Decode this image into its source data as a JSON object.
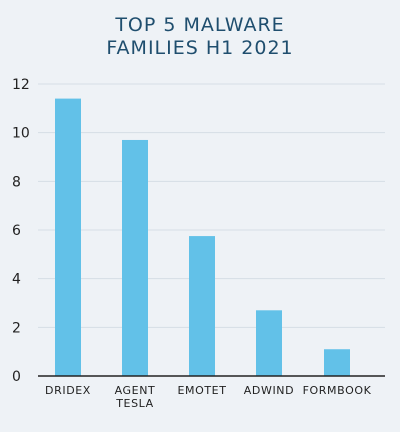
{
  "chart_data": {
    "type": "bar",
    "title_lines": [
      "TOP 5 MALWARE",
      "FAMILIES H1 2021"
    ],
    "categories": [
      [
        "DRIDEX"
      ],
      [
        "AGENT",
        "TESLA"
      ],
      [
        "EMOTET"
      ],
      [
        "ADWIND"
      ],
      [
        "FORMBOOK"
      ]
    ],
    "values": [
      11.4,
      9.7,
      5.75,
      2.7,
      1.1
    ],
    "ylim": [
      0,
      12
    ],
    "yticks": [
      0,
      2,
      4,
      6,
      8,
      10,
      12
    ],
    "grid": true,
    "bar_color": "#62c1e8",
    "grid_color": "#d5dde5",
    "axis_color": "#222222"
  }
}
